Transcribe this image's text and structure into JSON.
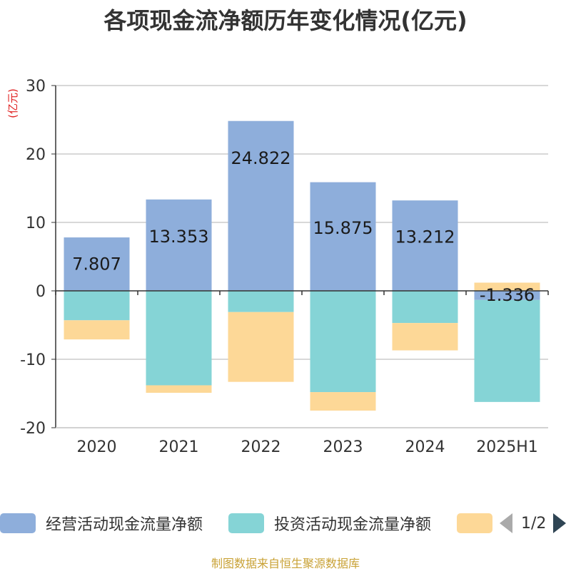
{
  "title": "各项现金流净额历年变化情况(亿元)",
  "source": "制图数据来自恒生聚源数据库",
  "legend": {
    "items": [
      {
        "label": "经营活动现金流量净额",
        "color": "#8eaedb"
      },
      {
        "label": "投资活动现金流量净额",
        "color": "#85d4d6"
      },
      {
        "label": "",
        "color": "#fdd897"
      }
    ],
    "page": "1/2"
  },
  "chart_data": {
    "type": "bar",
    "stacked": true,
    "categories": [
      "2020",
      "2021",
      "2022",
      "2023",
      "2024",
      "2025H1"
    ],
    "ylabel": "(亿元)",
    "ylim": [
      -20,
      30
    ],
    "yticks": [
      30,
      20,
      10,
      0,
      -10,
      -20
    ],
    "grid": true,
    "legend_position": "bottom",
    "series": [
      {
        "name": "经营活动现金流量净额",
        "color": "#8eaedb",
        "values": [
          7.807,
          13.353,
          24.822,
          15.875,
          13.212,
          -1.336
        ],
        "labels": [
          "7.807",
          "13.353",
          "24.822",
          "15.875",
          "13.212",
          "-1.336"
        ]
      },
      {
        "name": "投资活动现金流量净额",
        "color": "#85d4d6",
        "values": [
          -4.3,
          -13.8,
          -3.1,
          -14.8,
          -4.7,
          -14.9
        ]
      },
      {
        "color": "#fdd897",
        "values": [
          -2.8,
          -1.1,
          -10.2,
          -2.7,
          -4.0,
          1.2
        ]
      }
    ]
  }
}
